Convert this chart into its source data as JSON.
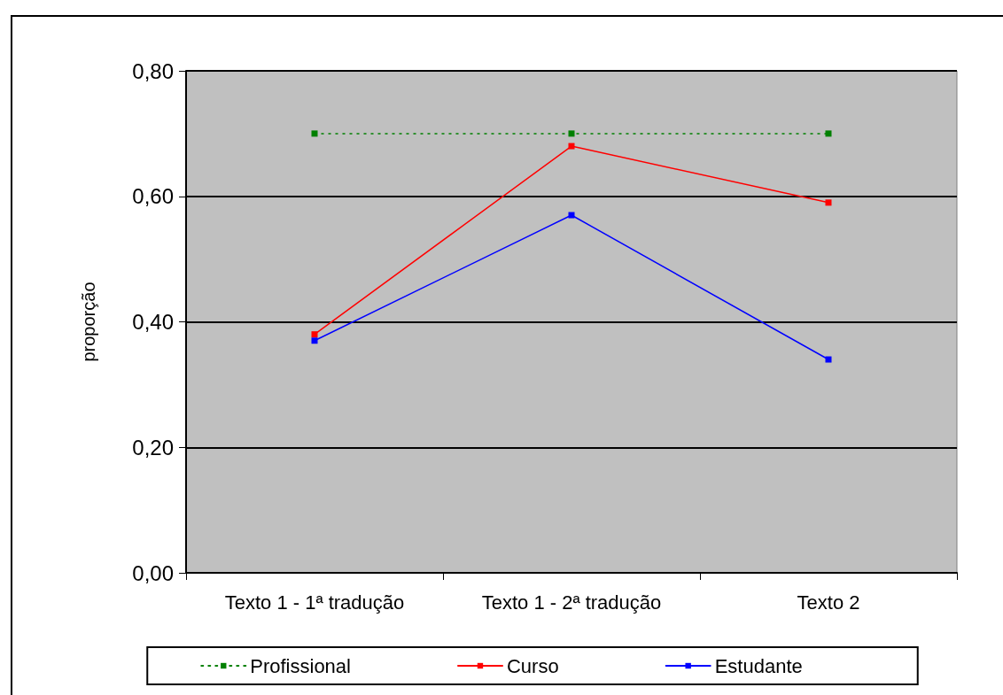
{
  "chart_data": {
    "type": "line",
    "ylabel": "proporção",
    "categories": [
      "Texto 1 - 1ª tradução",
      "Texto 1 - 2ª tradução",
      "Texto 2"
    ],
    "series": [
      {
        "name": "Profissional",
        "color": "#008000",
        "line_style": "dotted",
        "values": [
          0.7,
          0.7,
          0.7
        ]
      },
      {
        "name": "Curso",
        "color": "#ff0000",
        "values": [
          0.38,
          0.68,
          0.59
        ]
      },
      {
        "name": "Estudante",
        "color": "#0000ff",
        "values": [
          0.37,
          0.57,
          0.34
        ]
      }
    ],
    "ylim": [
      0,
      0.8
    ],
    "yticks": [
      {
        "value": 0,
        "label": "0,00"
      },
      {
        "value": 0.2,
        "label": "0,20"
      },
      {
        "value": 0.4,
        "label": "0,40"
      },
      {
        "value": 0.6,
        "label": "0,60"
      },
      {
        "value": 0.8,
        "label": "0,80"
      }
    ],
    "grid": "y",
    "legend": "bottom",
    "marker": "square",
    "line_style": "solid"
  }
}
